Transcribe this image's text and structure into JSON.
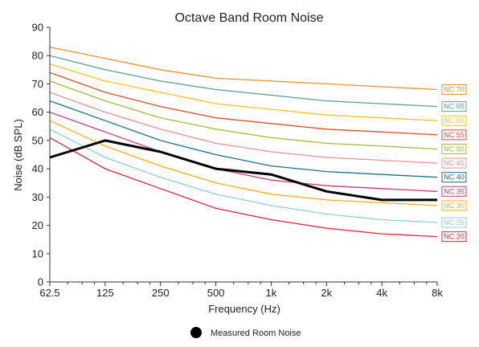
{
  "chart_data": {
    "type": "line",
    "title": "Octave Band Room Noise",
    "xlabel": "Frequency (Hz)",
    "ylabel": "Noise (dB SPL)",
    "x_scale": "log",
    "x": [
      62.5,
      125,
      250,
      500,
      1000,
      2000,
      4000,
      8000
    ],
    "x_tick_labels": [
      "62.5",
      "125",
      "250",
      "500",
      "1k",
      "2k",
      "4k",
      "8k"
    ],
    "ylim": [
      0,
      90
    ],
    "y_ticks": [
      0,
      10,
      20,
      30,
      40,
      50,
      60,
      70,
      80,
      90
    ],
    "grid": false,
    "legend_position": "bottom-center",
    "nc_curves": [
      {
        "name": "NC 70",
        "color": "#e8912e",
        "values": [
          83,
          79,
          75,
          72,
          71,
          70,
          69,
          68
        ]
      },
      {
        "name": "NC 65",
        "color": "#5f9e8f",
        "values": [
          80,
          75,
          71,
          68,
          66,
          64,
          63,
          62
        ]
      },
      {
        "name": "NC 60",
        "color": "#f2c81e",
        "values": [
          77,
          71,
          67,
          63,
          61,
          59,
          58,
          57
        ]
      },
      {
        "name": "NC 55",
        "color": "#d9502b",
        "values": [
          74,
          67,
          62,
          58,
          56,
          54,
          53,
          52
        ]
      },
      {
        "name": "NC 50",
        "color": "#a6b83c",
        "values": [
          71,
          64,
          58,
          54,
          51,
          49,
          48,
          47
        ]
      },
      {
        "name": "NC 45",
        "color": "#e39494",
        "values": [
          67,
          60,
          54,
          49,
          46,
          44,
          43,
          42
        ]
      },
      {
        "name": "NC 40",
        "color": "#1d6f8a",
        "values": [
          64,
          57,
          50,
          45,
          41,
          39,
          38,
          37
        ]
      },
      {
        "name": "NC 35",
        "color": "#c73a6e",
        "values": [
          60,
          53,
          46,
          40,
          36,
          34,
          33,
          32
        ]
      },
      {
        "name": "NC 30",
        "color": "#f2b01e",
        "values": [
          57,
          48,
          41,
          35,
          31,
          29,
          28,
          27
        ]
      },
      {
        "name": "NC 25",
        "color": "#8fd0d6",
        "values": [
          54,
          44,
          37,
          31,
          27,
          24,
          22,
          21
        ]
      },
      {
        "name": "NC 20",
        "color": "#d9243a",
        "values": [
          51,
          40,
          33,
          26,
          22,
          19,
          17,
          16
        ]
      }
    ],
    "series": [
      {
        "name": "Measured Room Noise",
        "color": "#000000",
        "values": [
          44,
          50,
          46,
          40,
          38,
          32,
          29,
          29
        ]
      }
    ]
  }
}
